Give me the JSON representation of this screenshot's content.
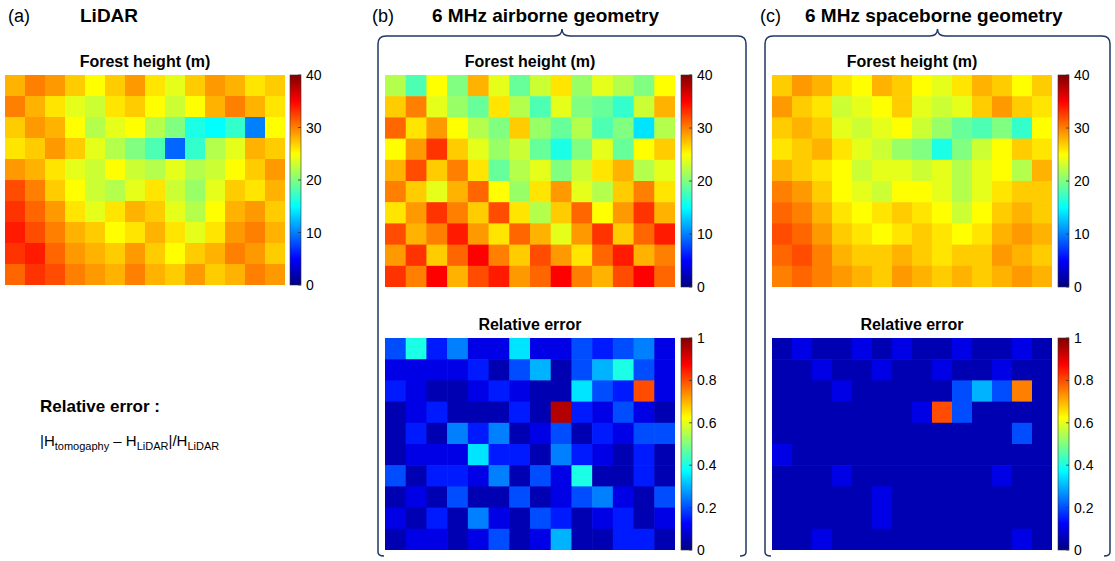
{
  "panels": [
    {
      "letter": "(a)",
      "title": "LiDAR"
    },
    {
      "letter": "(b)",
      "title": "6 MHz  airborne geometry"
    },
    {
      "letter": "(c)",
      "title": "6 MHz spaceborne geometry"
    }
  ],
  "note": {
    "title": "Relative error :",
    "formula": [
      "|H",
      "tomogaphy",
      " – H",
      "LiDAR",
      "|/H",
      "LiDAR"
    ]
  },
  "chart_data": [
    {
      "type": "heatmap",
      "title": "Forest height (m)",
      "colorbar_range": [
        0,
        40
      ],
      "colorbar_ticks": [
        0,
        10,
        20,
        30,
        40
      ],
      "values": [
        [
          28,
          30,
          29,
          27,
          25,
          27,
          29,
          26,
          24,
          27,
          29,
          28,
          26,
          27
        ],
        [
          30,
          28,
          26,
          24,
          23,
          26,
          27,
          25,
          23,
          25,
          28,
          30,
          28,
          26
        ],
        [
          27,
          29,
          28,
          25,
          22,
          24,
          25,
          22,
          20,
          16,
          15,
          17,
          10,
          25
        ],
        [
          26,
          27,
          29,
          27,
          24,
          22,
          20,
          18,
          9,
          17,
          22,
          24,
          28,
          27
        ],
        [
          29,
          28,
          26,
          24,
          23,
          25,
          23,
          22,
          24,
          22,
          23,
          25,
          27,
          29
        ],
        [
          32,
          30,
          27,
          25,
          23,
          22,
          24,
          26,
          23,
          21,
          24,
          27,
          26,
          28
        ],
        [
          33,
          31,
          29,
          26,
          24,
          26,
          28,
          27,
          24,
          22,
          25,
          28,
          29,
          27
        ],
        [
          34,
          32,
          30,
          28,
          27,
          25,
          26,
          28,
          26,
          24,
          26,
          29,
          30,
          28
        ],
        [
          33,
          34,
          31,
          29,
          28,
          27,
          29,
          27,
          25,
          27,
          28,
          30,
          29,
          27
        ],
        [
          31,
          33,
          32,
          30,
          29,
          28,
          30,
          28,
          27,
          29,
          27,
          28,
          30,
          29
        ]
      ]
    },
    {
      "type": "heatmap",
      "title": "Forest height (m)",
      "colorbar_range": [
        0,
        40
      ],
      "colorbar_ticks": [
        0,
        10,
        20,
        30,
        40
      ],
      "values": [
        [
          22,
          18,
          25,
          20,
          28,
          24,
          19,
          23,
          26,
          21,
          24,
          22,
          20,
          25
        ],
        [
          27,
          30,
          24,
          21,
          19,
          26,
          22,
          18,
          24,
          20,
          19,
          17,
          23,
          28
        ],
        [
          31,
          26,
          29,
          25,
          22,
          20,
          27,
          21,
          19,
          22,
          18,
          20,
          14,
          22
        ],
        [
          25,
          29,
          33,
          27,
          24,
          21,
          23,
          19,
          16,
          20,
          24,
          19,
          25,
          27
        ],
        [
          28,
          32,
          27,
          30,
          26,
          19,
          22,
          24,
          20,
          23,
          26,
          28,
          22,
          24
        ],
        [
          30,
          27,
          24,
          28,
          31,
          25,
          21,
          26,
          29,
          24,
          22,
          27,
          30,
          26
        ],
        [
          26,
          29,
          33,
          30,
          27,
          32,
          26,
          22,
          27,
          31,
          25,
          29,
          33,
          28
        ],
        [
          32,
          28,
          30,
          34,
          29,
          26,
          31,
          28,
          24,
          29,
          33,
          27,
          31,
          34
        ],
        [
          29,
          33,
          27,
          31,
          35,
          30,
          27,
          32,
          29,
          26,
          31,
          34,
          28,
          30
        ],
        [
          33,
          30,
          35,
          28,
          32,
          34,
          29,
          31,
          35,
          30,
          28,
          32,
          35,
          31
        ]
      ]
    },
    {
      "type": "heatmap",
      "title": "Relative error",
      "colorbar_range": [
        0,
        1
      ],
      "colorbar_ticks": [
        0,
        0.2,
        0.4,
        0.6,
        0.8,
        1
      ],
      "values": [
        [
          0.2,
          0.4,
          0.15,
          0.25,
          0.1,
          0.1,
          0.35,
          0.1,
          0.1,
          0.2,
          0.15,
          0.2,
          0.25,
          0.1
        ],
        [
          0.1,
          0.1,
          0.1,
          0.1,
          0.15,
          0.05,
          0.2,
          0.3,
          0.05,
          0.2,
          0.3,
          0.4,
          0.2,
          0.1
        ],
        [
          0.15,
          0.1,
          0.05,
          0.05,
          0.1,
          0.15,
          0.1,
          0.05,
          0.05,
          0.35,
          0.2,
          0.15,
          0.8,
          0.1
        ],
        [
          0.05,
          0.1,
          0.15,
          0.05,
          0.05,
          0.05,
          0.15,
          0.05,
          0.95,
          0.15,
          0.1,
          0.2,
          0.1,
          0.05
        ],
        [
          0.05,
          0.15,
          0.05,
          0.25,
          0.15,
          0.25,
          0.05,
          0.1,
          0.2,
          0.05,
          0.15,
          0.1,
          0.2,
          0.2
        ],
        [
          0.05,
          0.1,
          0.1,
          0.1,
          0.35,
          0.15,
          0.15,
          0.05,
          0.25,
          0.15,
          0.1,
          0.05,
          0.15,
          0.05
        ],
        [
          0.2,
          0.05,
          0.15,
          0.15,
          0.1,
          0.25,
          0.05,
          0.2,
          0.1,
          0.4,
          0.05,
          0.05,
          0.15,
          0.05
        ],
        [
          0.05,
          0.1,
          0.05,
          0.2,
          0.05,
          0.05,
          0.2,
          0.05,
          0.1,
          0.2,
          0.25,
          0.1,
          0.05,
          0.2
        ],
        [
          0.1,
          0.05,
          0.15,
          0.05,
          0.25,
          0.1,
          0.05,
          0.2,
          0.15,
          0.05,
          0.1,
          0.15,
          0.05,
          0.1
        ],
        [
          0.05,
          0.1,
          0.1,
          0.05,
          0.1,
          0.2,
          0.05,
          0.1,
          0.3,
          0.05,
          0.05,
          0.15,
          0.15,
          0.05
        ]
      ]
    },
    {
      "type": "heatmap",
      "title": "Forest height (m)",
      "colorbar_range": [
        0,
        40
      ],
      "colorbar_ticks": [
        0,
        10,
        20,
        30,
        40
      ],
      "values": [
        [
          27,
          29,
          28,
          26,
          25,
          28,
          27,
          25,
          24,
          26,
          28,
          27,
          25,
          27
        ],
        [
          29,
          27,
          26,
          23,
          24,
          25,
          27,
          24,
          23,
          24,
          27,
          29,
          27,
          26
        ],
        [
          27,
          28,
          27,
          24,
          23,
          24,
          25,
          23,
          21,
          19,
          18,
          20,
          17,
          25
        ],
        [
          26,
          27,
          28,
          26,
          24,
          23,
          21,
          20,
          16,
          20,
          23,
          25,
          27,
          26
        ],
        [
          28,
          27,
          26,
          25,
          23,
          24,
          24,
          23,
          24,
          22,
          24,
          25,
          22,
          28
        ],
        [
          30,
          29,
          27,
          25,
          24,
          23,
          25,
          25,
          24,
          22,
          24,
          26,
          27,
          27
        ],
        [
          31,
          30,
          28,
          26,
          25,
          26,
          27,
          26,
          25,
          23,
          25,
          27,
          28,
          27
        ],
        [
          32,
          31,
          29,
          27,
          26,
          25,
          26,
          27,
          26,
          25,
          26,
          28,
          29,
          28
        ],
        [
          31,
          32,
          30,
          28,
          27,
          27,
          28,
          27,
          26,
          27,
          27,
          29,
          28,
          27
        ],
        [
          30,
          31,
          30,
          29,
          28,
          27,
          29,
          28,
          27,
          28,
          27,
          28,
          29,
          28
        ]
      ]
    },
    {
      "type": "heatmap",
      "title": "Relative error",
      "colorbar_range": [
        0,
        1
      ],
      "colorbar_ticks": [
        0,
        0.2,
        0.4,
        0.6,
        0.8,
        1
      ],
      "values": [
        [
          0.05,
          0.1,
          0.05,
          0.05,
          0.1,
          0.05,
          0.1,
          0.05,
          0.05,
          0.1,
          0.05,
          0.05,
          0.1,
          0.05
        ],
        [
          0.05,
          0.05,
          0.1,
          0.05,
          0.05,
          0.1,
          0.05,
          0.05,
          0.1,
          0.05,
          0.05,
          0.1,
          0.05,
          0.05
        ],
        [
          0.05,
          0.05,
          0.05,
          0.1,
          0.05,
          0.05,
          0.05,
          0.05,
          0.05,
          0.2,
          0.3,
          0.2,
          0.75,
          0.05
        ],
        [
          0.05,
          0.05,
          0.05,
          0.05,
          0.05,
          0.05,
          0.05,
          0.1,
          0.8,
          0.2,
          0.05,
          0.05,
          0.05,
          0.05
        ],
        [
          0.05,
          0.05,
          0.05,
          0.05,
          0.05,
          0.05,
          0.05,
          0.05,
          0.05,
          0.05,
          0.05,
          0.05,
          0.2,
          0.05
        ],
        [
          0.1,
          0.05,
          0.05,
          0.05,
          0.05,
          0.05,
          0.05,
          0.05,
          0.05,
          0.05,
          0.05,
          0.05,
          0.05,
          0.05
        ],
        [
          0.05,
          0.05,
          0.05,
          0.1,
          0.05,
          0.05,
          0.05,
          0.05,
          0.05,
          0.05,
          0.05,
          0.1,
          0.05,
          0.05
        ],
        [
          0.05,
          0.05,
          0.05,
          0.05,
          0.05,
          0.1,
          0.05,
          0.05,
          0.05,
          0.05,
          0.05,
          0.05,
          0.05,
          0.05
        ],
        [
          0.05,
          0.05,
          0.05,
          0.05,
          0.05,
          0.1,
          0.05,
          0.05,
          0.05,
          0.05,
          0.05,
          0.05,
          0.05,
          0.05
        ],
        [
          0.05,
          0.05,
          0.1,
          0.05,
          0.05,
          0.05,
          0.05,
          0.05,
          0.05,
          0.05,
          0.05,
          0.05,
          0.1,
          0.05
        ]
      ]
    }
  ]
}
